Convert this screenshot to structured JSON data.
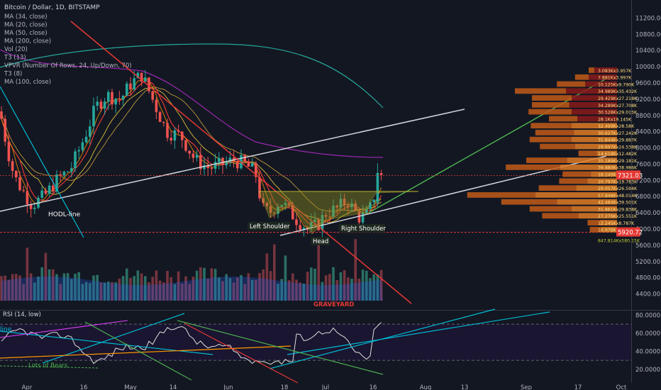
{
  "title": "Bitcoin / Dollar, 1D, BITSTAMP",
  "indicators": [
    "MA (34, close)",
    "MA (20, close)",
    "MA (50, close)",
    "MA (200, close)",
    "Vol (20)",
    "T3 (13)",
    "VPVR (Number Of Rows, 24, Up/Down, 70)",
    "T3 (8)",
    "MA (100, close)"
  ],
  "price_axis": {
    "ticks": [
      "11200.00",
      "10800.00",
      "10400.00",
      "10000.00",
      "9600.00",
      "9200.00",
      "8800.00",
      "8400.00",
      "8000.00",
      "7600.00",
      "7200.00",
      "6800.00",
      "6400.00",
      "6000.00",
      "5600.00",
      "5200.00",
      "4800.00",
      "4400.00"
    ]
  },
  "price_badges": [
    {
      "text": "7321.03",
      "color": "#e53935"
    },
    {
      "text": "5920.72",
      "color": "#e53935"
    }
  ],
  "rsi": {
    "label": "RSI (14, low)",
    "ticks": [
      "80.0000",
      "60.0000",
      "40.0000",
      "20.0000"
    ],
    "upper": 70,
    "lower": 30
  },
  "time_axis": [
    "Apr",
    "16",
    "May",
    "14",
    "Jun",
    "18",
    "Jul",
    "16",
    "Aug",
    "13",
    "Sep",
    "17",
    "Oct"
  ],
  "annotations": {
    "hodl_line": "HODL-line",
    "left_shoulder": "Left Shoulder",
    "head": "Head",
    "right_shoulder": "Right Shoulder",
    "graveyard": "GRAVEYARD",
    "lots_of_bears": "Lots of Bears",
    "rsi_line_label": "line"
  },
  "colors": {
    "up": "#26a69a",
    "down": "#ef5350",
    "ma_purple": "#9c27b0",
    "ma_teal": "#26a69a",
    "ma_yellow": "#c9b037",
    "red_trend": "#e53935",
    "green_trend": "#4caf50",
    "white_trend": "#d1d4dc"
  },
  "chart_data": {
    "type": "candlestick",
    "title": "Bitcoin / Dollar, 1D, BITSTAMP",
    "ylim": [
      4200,
      11400
    ],
    "vpvr": {
      "rows": [
        {
          "label": "3.083Kx3.957K",
          "up": 0.2,
          "down": 0.05
        },
        {
          "label": "7.881Kx3.997K",
          "up": 0.25,
          "down": 0.12
        },
        {
          "label": "10.125Kx9.790K",
          "up": 0.28,
          "down": 0.25
        },
        {
          "label": "34.989Kx35.432K",
          "up": 0.45,
          "down": 0.45
        },
        {
          "label": "29.429Kx27.218K",
          "up": 0.4,
          "down": 0.35
        },
        {
          "label": "34.289Kx27.708K",
          "up": 0.42,
          "down": 0.33
        },
        {
          "label": "30.528Kx29.015K",
          "up": 0.4,
          "down": 0.38
        },
        {
          "label": "28.1Kx19.145K",
          "up": 0.35,
          "down": 0.25
        },
        {
          "label": "32.499Kx28.58K",
          "up": 0.4,
          "down": 0.36
        },
        {
          "label": "30.627Kx27.242K",
          "up": 0.38,
          "down": 0.34
        },
        {
          "label": "31.844Kx29.887K",
          "up": 0.4,
          "down": 0.37
        },
        {
          "label": "29.697Kx24.538K",
          "up": 0.37,
          "down": 0.31
        },
        {
          "label": "14.618Kx12.482K",
          "up": 0.18,
          "down": 0.16
        },
        {
          "label": "35.189Kx29.181K",
          "up": 0.44,
          "down": 0.36
        },
        {
          "label": "39.880Kx38.986K",
          "up": 0.5,
          "down": 0.48
        },
        {
          "label": "18.249Kx19.585K",
          "up": 0.23,
          "down": 0.25
        },
        {
          "label": "20.797Kx19.783K",
          "up": 0.26,
          "down": 0.25
        },
        {
          "label": "29.057Kx26.594K",
          "up": 0.36,
          "down": 0.33
        },
        {
          "label": "57.848Kx48.014K",
          "up": 0.72,
          "down": 0.6
        },
        {
          "label": "42.484Kx39.501K",
          "up": 0.53,
          "down": 0.49
        },
        {
          "label": "31.861Kx29.838K",
          "up": 0.4,
          "down": 0.37
        },
        {
          "label": "27.276Kx25.551K",
          "up": 0.34,
          "down": 0.32
        },
        {
          "label": "12.245Kx8.787K",
          "up": 0.15,
          "down": 0.11
        },
        {
          "label": "10.978Kx7.825K",
          "up": 0.14,
          "down": 0.1
        }
      ],
      "total": "847.814Kx580.15K"
    }
  }
}
